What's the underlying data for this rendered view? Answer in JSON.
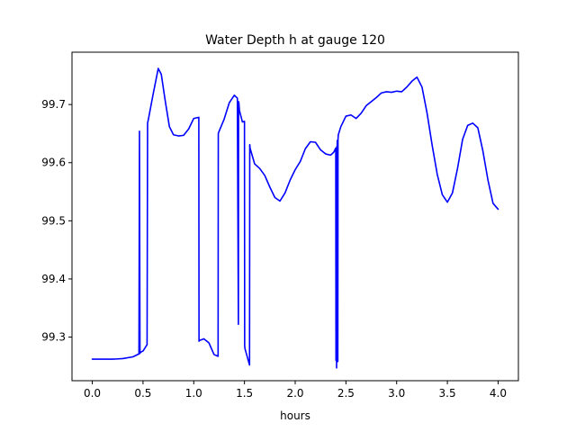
{
  "chart_data": {
    "type": "line",
    "title": "Water Depth h at gauge 120",
    "xlabel": "hours",
    "ylabel": "",
    "xlim": [
      -0.2,
      4.2
    ],
    "ylim": [
      99.225,
      99.79
    ],
    "xticks": [
      0.0,
      0.5,
      1.0,
      1.5,
      2.0,
      2.5,
      3.0,
      3.5,
      4.0
    ],
    "xtick_labels": [
      "0.0",
      "0.5",
      "1.0",
      "1.5",
      "2.0",
      "2.5",
      "3.0",
      "3.5",
      "4.0"
    ],
    "yticks": [
      99.3,
      99.4,
      99.5,
      99.6,
      99.7
    ],
    "ytick_labels": [
      "99.3",
      "99.4",
      "99.5",
      "99.6",
      "99.7"
    ],
    "grid": false,
    "series": [
      {
        "color": "#0000ff",
        "x": [
          0.0,
          0.1,
          0.2,
          0.3,
          0.4,
          0.46,
          0.465,
          0.47,
          0.475,
          0.5,
          0.54,
          0.545,
          0.55,
          0.6,
          0.65,
          0.68,
          0.72,
          0.76,
          0.8,
          0.85,
          0.9,
          0.95,
          1.0,
          1.05,
          1.052,
          1.055,
          1.1,
          1.15,
          1.2,
          1.24,
          1.242,
          1.245,
          1.3,
          1.35,
          1.4,
          1.43,
          1.44,
          1.442,
          1.445,
          1.45,
          1.48,
          1.5,
          1.502,
          1.505,
          1.55,
          1.552,
          1.555,
          1.6,
          1.65,
          1.7,
          1.75,
          1.8,
          1.85,
          1.9,
          1.95,
          2.0,
          2.05,
          2.1,
          2.15,
          2.2,
          2.25,
          2.3,
          2.35,
          2.38,
          2.4,
          2.402,
          2.404,
          2.408,
          2.41,
          2.412,
          2.414,
          2.42,
          2.422,
          2.425,
          2.45,
          2.5,
          2.55,
          2.6,
          2.65,
          2.7,
          2.75,
          2.8,
          2.85,
          2.9,
          2.95,
          3.0,
          3.05,
          3.1,
          3.15,
          3.2,
          3.25,
          3.3,
          3.35,
          3.4,
          3.45,
          3.5,
          3.55,
          3.6,
          3.65,
          3.7,
          3.75,
          3.8,
          3.85,
          3.9,
          3.95,
          4.0
        ],
        "y": [
          99.262,
          99.262,
          99.262,
          99.263,
          99.266,
          99.271,
          99.654,
          99.272,
          99.274,
          99.276,
          99.287,
          99.668,
          99.672,
          99.718,
          99.762,
          99.752,
          99.705,
          99.662,
          99.648,
          99.646,
          99.647,
          99.658,
          99.676,
          99.678,
          99.293,
          99.294,
          99.297,
          99.29,
          99.27,
          99.267,
          99.65,
          99.652,
          99.675,
          99.703,
          99.716,
          99.711,
          99.322,
          99.705,
          99.703,
          99.69,
          99.67,
          99.671,
          99.285,
          99.28,
          99.252,
          99.631,
          99.625,
          99.598,
          99.59,
          99.578,
          99.558,
          99.54,
          99.534,
          99.548,
          99.57,
          99.588,
          99.602,
          99.624,
          99.636,
          99.635,
          99.622,
          99.615,
          99.613,
          99.618,
          99.625,
          99.26,
          99.625,
          99.247,
          99.628,
          99.26,
          99.638,
          99.258,
          99.64,
          99.648,
          99.662,
          99.68,
          99.682,
          99.676,
          99.685,
          99.698,
          99.705,
          99.712,
          99.72,
          99.722,
          99.721,
          99.723,
          99.722,
          99.73,
          99.74,
          99.747,
          99.73,
          99.685,
          99.63,
          99.58,
          99.545,
          99.532,
          99.548,
          99.59,
          99.64,
          99.664,
          99.668,
          99.66,
          99.62,
          99.57,
          99.53,
          99.52
        ]
      }
    ]
  }
}
